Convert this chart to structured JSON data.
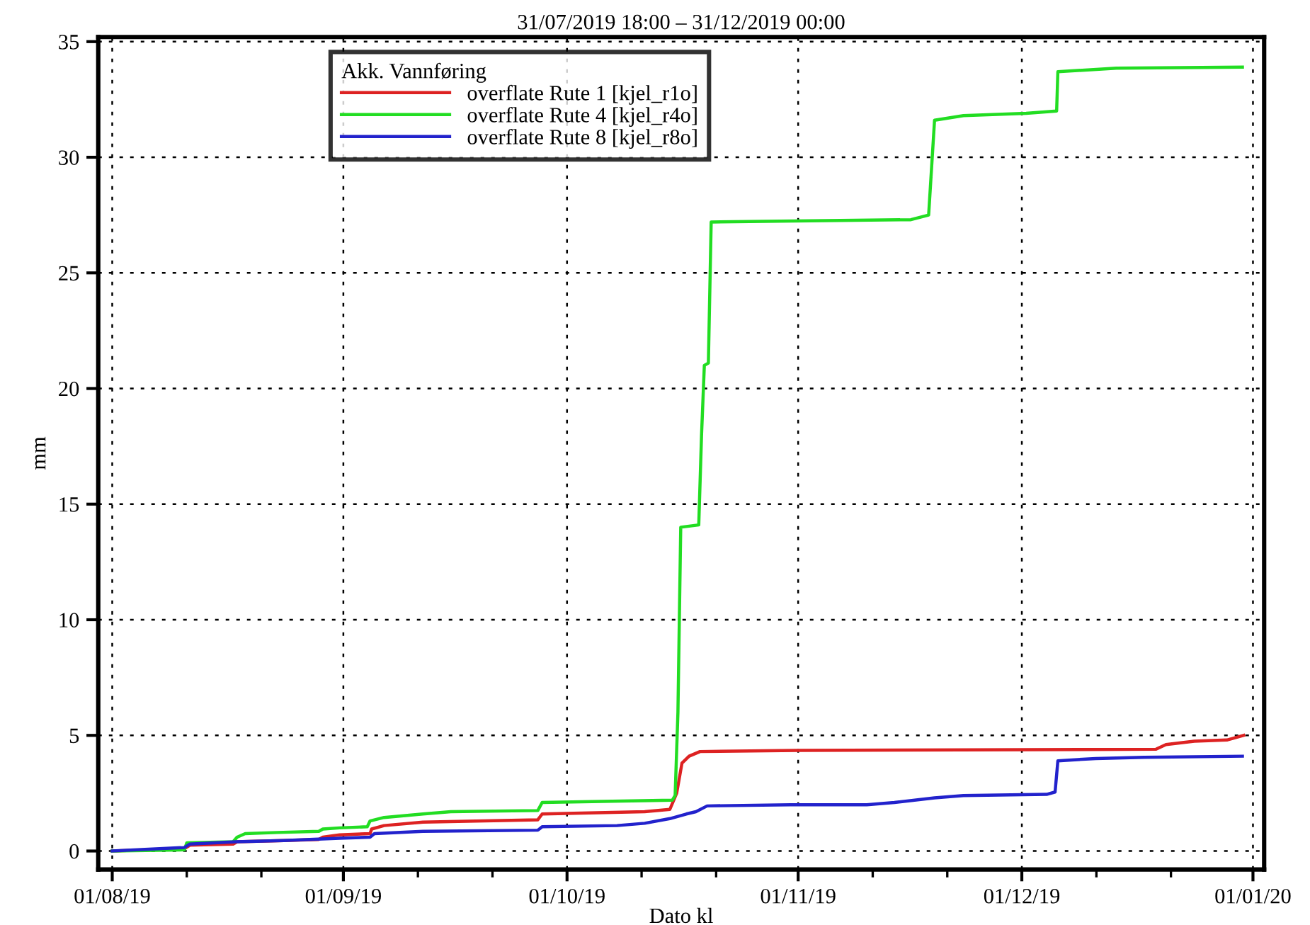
{
  "chart_data": {
    "type": "line",
    "title": "31/07/2019 18:00 – 31/12/2019 00:00",
    "xlabel": "Dato kl",
    "ylabel": "mm",
    "legend_title": "Akk. Vannføring",
    "series": [
      {
        "name": "overflate Rute 1 [kjel_r1o]",
        "color": "#dd2222",
        "x": [
          "2019-08-01",
          "2019-08-10T16:00",
          "2019-08-11T10:00",
          "2019-08-17T05:00",
          "2019-08-17T18:00",
          "2019-08-24",
          "2019-08-28T17:00",
          "2019-08-29T06:00",
          "2019-08-31T12:00",
          "2019-09-04T14:00",
          "2019-09-04T19:00",
          "2019-09-06T11:00",
          "2019-09-11T16:00",
          "2019-09-27T02:00",
          "2019-09-27T16:00",
          "2019-10-11T10:00",
          "2019-10-14T19:00",
          "2019-10-15T17:00",
          "2019-10-16T10:00",
          "2019-10-17T09:00",
          "2019-10-18T20:00",
          "2019-10-31T22:00",
          "2019-12-19",
          "2019-12-20T08:00",
          "2019-12-24T03:00",
          "2019-12-28T12:00",
          "2019-12-30T18:00"
        ],
        "values": [
          0,
          0.1,
          0.25,
          0.3,
          0.4,
          0.45,
          0.5,
          0.6,
          0.7,
          0.75,
          0.95,
          1.1,
          1.25,
          1.35,
          1.6,
          1.7,
          1.8,
          2.5,
          3.8,
          4.1,
          4.3,
          4.35,
          4.4,
          4.6,
          4.75,
          4.8,
          5.0
        ]
      },
      {
        "name": "overflate Rute 4 [kjel_r4o]",
        "color": "#22dd22",
        "x": [
          "2019-08-01",
          "2019-08-10T16:00",
          "2019-08-11",
          "2019-08-17T05:00",
          "2019-08-17T18:00",
          "2019-08-18T20:00",
          "2019-08-23T03:00",
          "2019-08-28T17:00",
          "2019-08-29T06:00",
          "2019-08-31T12:00",
          "2019-09-04T05:00",
          "2019-09-04T14:00",
          "2019-09-06T11:00",
          "2019-09-11T16:00",
          "2019-09-15T10:00",
          "2019-09-27T02:00",
          "2019-09-27T16:00",
          "2019-10-15T03:00",
          "2019-10-15T12:00",
          "2019-10-15T21:00",
          "2019-10-16T06:00",
          "2019-10-18T16:00",
          "2019-10-19T01:00",
          "2019-10-19T10:00",
          "2019-10-19T23:00",
          "2019-10-20T08:00",
          "2019-11-16T03:00",
          "2019-11-18T12:00",
          "2019-11-19T07:00",
          "2019-11-23T04:00",
          "2019-12-01T14:00",
          "2019-12-05T16:00",
          "2019-12-05T20:00",
          "2019-12-13T16:00",
          "2019-12-30T14:00"
        ],
        "values": [
          0,
          0.05,
          0.35,
          0.4,
          0.6,
          0.75,
          0.8,
          0.85,
          0.95,
          1.0,
          1.05,
          1.3,
          1.45,
          1.6,
          1.7,
          1.75,
          2.1,
          2.2,
          2.4,
          6.0,
          14.0,
          14.1,
          18.0,
          21.0,
          21.1,
          27.2,
          27.3,
          27.5,
          31.6,
          31.8,
          31.9,
          32.0,
          33.7,
          33.85,
          33.9
        ]
      },
      {
        "name": "overflate Rute 8 [kjel_r8o]",
        "color": "#2222cc",
        "x": [
          "2019-08-01",
          "2019-08-10T16:00",
          "2019-08-11T10:00",
          "2019-08-17T13:00",
          "2019-08-24",
          "2019-08-31T12:00",
          "2019-09-04T14:00",
          "2019-09-05T04:00",
          "2019-09-11T16:00",
          "2019-09-27T02:00",
          "2019-09-27T16:00",
          "2019-10-07T17:00",
          "2019-10-11T10:00",
          "2019-10-14T19:00",
          "2019-10-17",
          "2019-10-18T07:00",
          "2019-10-19T19:00",
          "2019-10-31",
          "2019-11-10T05:00",
          "2019-11-13T22:00",
          "2019-11-19T07:00",
          "2019-11-23T04:00",
          "2019-12-04T08:00",
          "2019-12-05T11:00",
          "2019-12-05T20:00",
          "2019-12-10T22:00",
          "2019-12-17T09:00",
          "2019-12-30T14:00"
        ],
        "values": [
          0,
          0.15,
          0.3,
          0.4,
          0.45,
          0.55,
          0.6,
          0.75,
          0.85,
          0.9,
          1.05,
          1.1,
          1.2,
          1.4,
          1.6,
          1.7,
          1.95,
          2.0,
          2.0,
          2.1,
          2.3,
          2.4,
          2.45,
          2.55,
          3.9,
          4.0,
          4.05,
          4.1
        ]
      }
    ],
    "xlim": [
      "2019-07-30T03:00",
      "2020-01-02T12:00"
    ],
    "xticks": [
      {
        "value": "2019-08-01",
        "label": "01/08/19"
      },
      {
        "value": "2019-08-11",
        "label": null
      },
      {
        "value": "2019-08-21",
        "label": null
      },
      {
        "value": "2019-09-01",
        "label": "01/09/19"
      },
      {
        "value": "2019-09-11",
        "label": null
      },
      {
        "value": "2019-09-21",
        "label": null
      },
      {
        "value": "2019-10-01",
        "label": "01/10/19"
      },
      {
        "value": "2019-10-11",
        "label": null
      },
      {
        "value": "2019-10-21",
        "label": null
      },
      {
        "value": "2019-11-01",
        "label": "01/11/19"
      },
      {
        "value": "2019-11-11",
        "label": null
      },
      {
        "value": "2019-11-21",
        "label": null
      },
      {
        "value": "2019-12-01",
        "label": "01/12/19"
      },
      {
        "value": "2019-12-11",
        "label": null
      },
      {
        "value": "2019-12-21",
        "label": null
      },
      {
        "value": "2020-01-01",
        "label": "01/01/20"
      }
    ],
    "ylim": [
      -0.8,
      35.2
    ],
    "yticks": [
      0,
      5,
      10,
      15,
      20,
      25,
      30,
      35
    ],
    "grid": true,
    "legend": "top left",
    "marker": "none",
    "line_style": "solid"
  }
}
